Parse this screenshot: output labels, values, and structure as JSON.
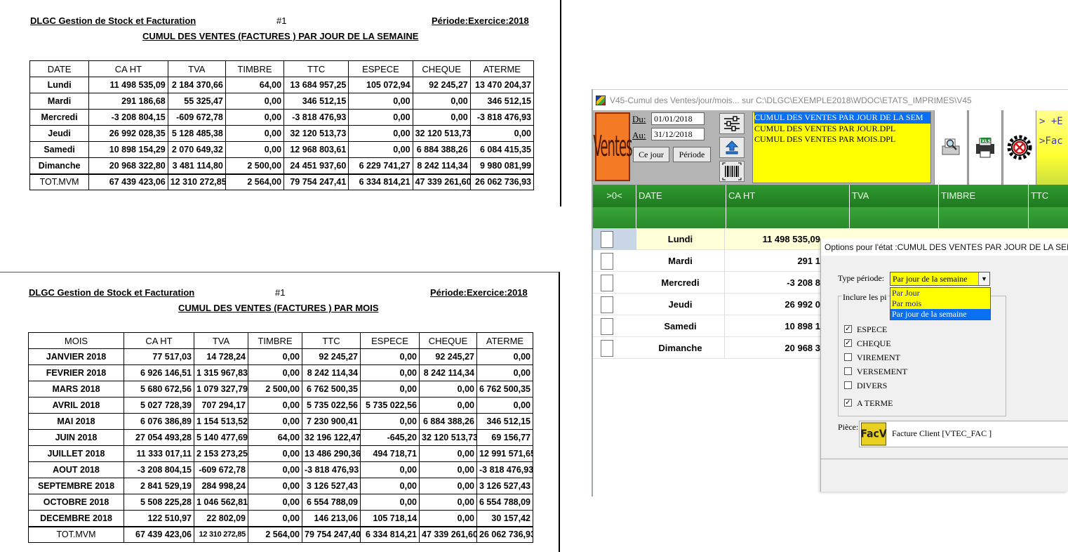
{
  "report_monday_week": {
    "company": "DLGC Gestion de Stock et Facturation",
    "number": "#1",
    "period": "Période:Exercice:2018",
    "title": "CUMUL DES VENTES (FACTURES )  PAR JOUR DE LA SEMAINE",
    "headers": [
      "DATE",
      "CA HT",
      "TVA",
      "TIMBRE",
      "TTC",
      "ESPECE",
      "CHEQUE",
      "ATERME"
    ],
    "rows": [
      [
        "Lundi",
        "11 498 535,09",
        "2 184 370,66",
        "64,00",
        "13 684 957,25",
        "105 072,94",
        "92 245,27",
        "13 470 204,37"
      ],
      [
        "Mardi",
        "291 186,68",
        "55 325,47",
        "0,00",
        "346 512,15",
        "0,00",
        "0,00",
        "346 512,15"
      ],
      [
        "Mercredi",
        "-3 208 804,15",
        "-609 672,78",
        "0,00",
        "-3 818 476,93",
        "0,00",
        "0,00",
        "-3 818 476,93"
      ],
      [
        "Jeudi",
        "26 992 028,35",
        "5 128 485,38",
        "0,00",
        "32 120 513,73",
        "0,00",
        "32 120 513,73",
        "0,00"
      ],
      [
        "Samedi",
        "10 898 154,29",
        "2 070 649,32",
        "0,00",
        "12 968 803,61",
        "0,00",
        "6 884 388,26",
        "6 084 415,35"
      ],
      [
        "Dimanche",
        "20 968 322,80",
        "3 481 114,80",
        "2 500,00",
        "24 451 937,60",
        "6 229 741,27",
        "8 242 114,34",
        "9 980 081,99"
      ]
    ],
    "total": [
      "TOT.MVM",
      "67 439 423,06",
      "12 310 272,85",
      "2 564,00",
      "79 754 247,41",
      "6 334 814,21",
      "47 339 261,60",
      "26 062 736,93"
    ]
  },
  "report_month": {
    "company": "DLGC Gestion de Stock et Facturation",
    "number": "#1",
    "period": "Période:Exercice:2018",
    "title": "CUMUL DES VENTES (FACTURES )  PAR MOIS",
    "headers": [
      "MOIS",
      "CA HT",
      "TVA",
      "TIMBRE",
      "TTC",
      "ESPECE",
      "CHEQUE",
      "ATERME"
    ],
    "rows": [
      [
        "JANVIER 2018",
        "77 517,03",
        "14 728,24",
        "0,00",
        "92 245,27",
        "0,00",
        "92 245,27",
        "0,00"
      ],
      [
        "FEVRIER 2018",
        "6 926 146,51",
        "1 315 967,83",
        "0,00",
        "8 242 114,34",
        "0,00",
        "8 242 114,34",
        "0,00"
      ],
      [
        "MARS 2018",
        "5 680 672,56",
        "1 079 327,79",
        "2 500,00",
        "6 762 500,35",
        "0,00",
        "0,00",
        "6 762 500,35"
      ],
      [
        "AVRIL 2018",
        "5 027 728,39",
        "707 294,17",
        "0,00",
        "5 735 022,56",
        "5 735 022,56",
        "0,00",
        "0,00"
      ],
      [
        "MAI 2018",
        "6 076 386,89",
        "1 154 513,52",
        "0,00",
        "7 230 900,41",
        "0,00",
        "6 884 388,26",
        "346 512,15"
      ],
      [
        "JUIN 2018",
        "27 054 493,28",
        "5 140 477,69",
        "64,00",
        "32 196 122,47",
        "-645,20",
        "32 120 513,73",
        "69 156,77"
      ],
      [
        "JUILLET 2018",
        "11 333 017,11",
        "2 153 273,25",
        "0,00",
        "13 486 290,36",
        "494 718,71",
        "0,00",
        "12 991 571,65"
      ],
      [
        "AOUT 2018",
        "-3 208 804,15",
        "-609 672,78",
        "0,00",
        "-3 818 476,93",
        "0,00",
        "0,00",
        "-3 818 476,93"
      ],
      [
        "SEPTEMBRE 2018",
        "2 841 529,19",
        "284 998,24",
        "0,00",
        "3 126 527,43",
        "0,00",
        "0,00",
        "3 126 527,43"
      ],
      [
        "OCTOBRE 2018",
        "5 508 225,28",
        "1 046 562,81",
        "0,00",
        "6 554 788,09",
        "0,00",
        "0,00",
        "6 554 788,09"
      ],
      [
        "DECEMBRE 2018",
        "122 510,97",
        "22 802,09",
        "0,00",
        "146 213,06",
        "105 718,14",
        "0,00",
        "30 157,42"
      ]
    ],
    "total": [
      "TOT.MVM",
      "67 439 423,06",
      "12 310 272,85",
      "2 564,00",
      "79 754 247,40",
      "6 334 814,21",
      "47 339 261,60",
      "26 062 736,93"
    ]
  },
  "app": {
    "title": "V45-Cumul des Ventes/jour/mois... sur C:\\DLGC\\EXEMPLE2018\\WDOC\\ETATS_IMPRIMES\\V45",
    "ventes_label": "Ventes",
    "du_label": "Du:",
    "au_label": "Au:",
    "du_value": "01/01/2018",
    "au_value": "31/12/2018",
    "ce_jour_button": "Ce jour",
    "periode_button": "Période",
    "report_list": [
      "CUMUL DES VENTES PAR JOUR DE LA SEM",
      "CUMUL DES VENTES PAR JOUR.DPL",
      "CUMUL DES VENTES PAR MOIS.DPL"
    ],
    "right_panel_line1": "> +E",
    "right_panel_line2": ">Fac",
    "grid_headers": [
      ">0<",
      "DATE",
      "CA HT",
      "TVA",
      "TIMBRE",
      "TTC"
    ],
    "grid_rows": [
      {
        "day": "Lundi",
        "ca": "11 498 535,09"
      },
      {
        "day": "Mardi",
        "ca": "291 1"
      },
      {
        "day": "Mercredi",
        "ca": "-3 208 8"
      },
      {
        "day": "Jeudi",
        "ca": "26 992 0"
      },
      {
        "day": "Samedi",
        "ca": "10 898 1"
      },
      {
        "day": "Dimanche",
        "ca": "20 968 3"
      }
    ],
    "icons": [
      "settings-sliders-icon",
      "upload-icon",
      "barcode-icon",
      "print-preview-icon",
      "excel-print-icon",
      "gear-exit-icon"
    ]
  },
  "dialog": {
    "title": "Options pour l'état :CUMUL DES VENTES PAR JOUR DE LA SEMAINE",
    "type_periode_label": "Type période:",
    "type_periode_value": "Par jour de la semaine",
    "options": [
      "Par Jour",
      "Par mois",
      "Par jour de la semaine"
    ],
    "selected_option_index": 2,
    "inclure_label": "Inclure les pi",
    "checkboxes": [
      {
        "label": "ESPECE",
        "checked": true
      },
      {
        "label": "CHEQUE",
        "checked": true
      },
      {
        "label": "VIREMENT",
        "checked": false
      },
      {
        "label": "VERSEMENT",
        "checked": false
      },
      {
        "label": "DIVERS",
        "checked": false
      },
      {
        "label": "A TERME",
        "checked": true
      }
    ],
    "piece_label": "Pièce:",
    "piece_icon_text": "FacV",
    "piece_value": "Facture Client [VTEC_FAC  ]"
  }
}
